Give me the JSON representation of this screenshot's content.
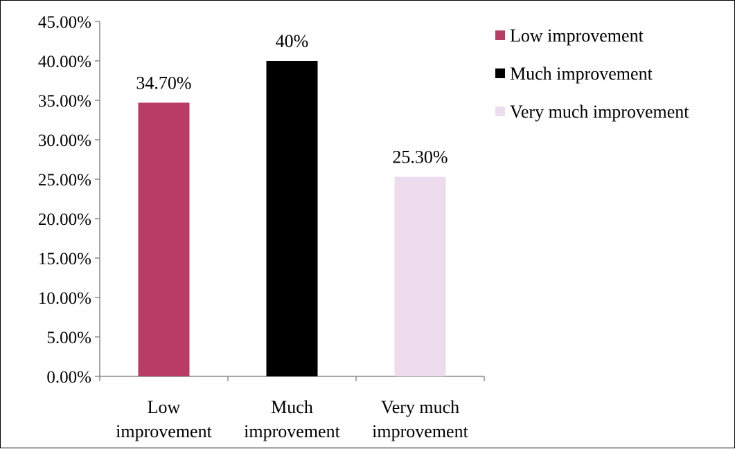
{
  "chart_data": {
    "type": "bar",
    "categories": [
      "Low improvement",
      "Much improvement",
      "Very much improvement"
    ],
    "category_lines": [
      [
        "Low",
        "improvement"
      ],
      [
        "Much",
        "improvement"
      ],
      [
        "Very much",
        "improvement"
      ]
    ],
    "values": [
      34.7,
      40,
      25.3
    ],
    "data_labels": [
      "34.70%",
      "40%",
      "25.30%"
    ],
    "colors": [
      "#b83c66",
      "#000000",
      "#ecdcee"
    ],
    "ylim": [
      0,
      45
    ],
    "yticks": [
      0,
      5,
      10,
      15,
      20,
      25,
      30,
      35,
      40,
      45
    ],
    "ytick_labels": [
      "0.00%",
      "5.00%",
      "10.00%",
      "15.00%",
      "20.00%",
      "25.00%",
      "30.00%",
      "35.00%",
      "40.00%",
      "45.00%"
    ],
    "title": "",
    "xlabel": "",
    "ylabel": "",
    "grid": false,
    "legend": {
      "position": "top-right",
      "entries": [
        "Low improvement",
        "Much improvement",
        "Very much improvement"
      ]
    }
  }
}
